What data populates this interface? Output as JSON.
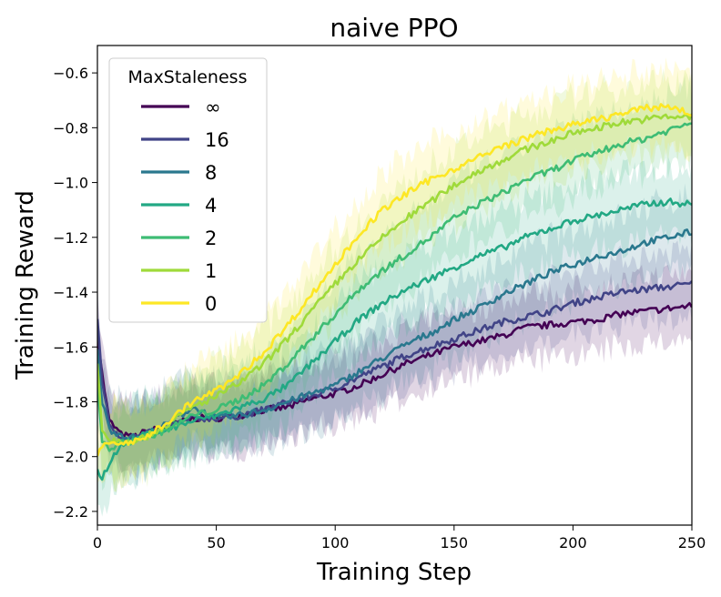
{
  "chart_data": {
    "type": "line",
    "title": "naive PPO",
    "xlabel": "Training Step",
    "ylabel": "Training Reward",
    "xlim": [
      0,
      250
    ],
    "ylim": [
      -2.25,
      -0.5
    ],
    "xticks": [
      0,
      50,
      100,
      150,
      200,
      250
    ],
    "yticks": [
      -2.2,
      -2.0,
      -1.8,
      -1.6,
      -1.4,
      -1.2,
      -1.0,
      -0.8,
      -0.6
    ],
    "ytick_labels": [
      "−2.2",
      "−2.0",
      "−1.8",
      "−1.6",
      "−1.4",
      "−1.2",
      "−1.0",
      "−0.8",
      "−0.6"
    ],
    "legend": {
      "title": "MaxStaleness",
      "position": "top-left"
    },
    "series": [
      {
        "name": "∞",
        "color": "#440154",
        "x": [
          0,
          2,
          5,
          10,
          15,
          20,
          30,
          40,
          50,
          60,
          70,
          80,
          90,
          100,
          110,
          120,
          130,
          140,
          150,
          160,
          170,
          180,
          190,
          200,
          210,
          220,
          230,
          240,
          250
        ],
        "y": [
          -1.55,
          -1.7,
          -1.87,
          -1.92,
          -1.93,
          -1.91,
          -1.89,
          -1.86,
          -1.86,
          -1.85,
          -1.83,
          -1.82,
          -1.79,
          -1.77,
          -1.74,
          -1.7,
          -1.66,
          -1.63,
          -1.6,
          -1.58,
          -1.56,
          -1.53,
          -1.52,
          -1.51,
          -1.5,
          -1.48,
          -1.47,
          -1.46,
          -1.45
        ],
        "band": 0.12
      },
      {
        "name": "16",
        "color": "#414487",
        "x": [
          0,
          2,
          5,
          10,
          15,
          20,
          30,
          40,
          50,
          60,
          70,
          80,
          90,
          100,
          110,
          120,
          130,
          140,
          150,
          160,
          170,
          180,
          190,
          200,
          210,
          220,
          230,
          240,
          250
        ],
        "y": [
          -1.5,
          -1.72,
          -1.88,
          -1.93,
          -1.93,
          -1.92,
          -1.89,
          -1.86,
          -1.86,
          -1.85,
          -1.83,
          -1.8,
          -1.78,
          -1.75,
          -1.71,
          -1.67,
          -1.63,
          -1.6,
          -1.57,
          -1.54,
          -1.51,
          -1.49,
          -1.47,
          -1.44,
          -1.42,
          -1.4,
          -1.39,
          -1.38,
          -1.37
        ],
        "band": 0.12
      },
      {
        "name": "8",
        "color": "#2a788e",
        "x": [
          0,
          2,
          5,
          10,
          15,
          20,
          30,
          40,
          50,
          60,
          70,
          80,
          90,
          100,
          110,
          120,
          130,
          140,
          150,
          160,
          170,
          180,
          190,
          200,
          210,
          220,
          230,
          240,
          250
        ],
        "y": [
          -1.6,
          -1.8,
          -1.9,
          -1.92,
          -1.93,
          -1.92,
          -1.88,
          -1.82,
          -1.86,
          -1.85,
          -1.83,
          -1.8,
          -1.77,
          -1.74,
          -1.69,
          -1.64,
          -1.59,
          -1.55,
          -1.5,
          -1.46,
          -1.41,
          -1.37,
          -1.33,
          -1.3,
          -1.27,
          -1.25,
          -1.22,
          -1.2,
          -1.18
        ],
        "band": 0.13
      },
      {
        "name": "4",
        "color": "#22a884",
        "x": [
          0,
          2,
          5,
          10,
          15,
          20,
          30,
          40,
          50,
          60,
          70,
          80,
          90,
          100,
          110,
          120,
          130,
          140,
          150,
          160,
          170,
          180,
          190,
          200,
          210,
          220,
          230,
          240,
          250
        ],
        "y": [
          -2.05,
          -2.08,
          -2.02,
          -1.96,
          -1.94,
          -1.92,
          -1.9,
          -1.87,
          -1.85,
          -1.82,
          -1.79,
          -1.74,
          -1.66,
          -1.58,
          -1.5,
          -1.44,
          -1.39,
          -1.35,
          -1.31,
          -1.27,
          -1.24,
          -1.2,
          -1.17,
          -1.14,
          -1.12,
          -1.1,
          -1.08,
          -1.07,
          -1.08
        ],
        "band": 0.13
      },
      {
        "name": "2",
        "color": "#3ebc74",
        "x": [
          0,
          2,
          5,
          10,
          15,
          20,
          30,
          40,
          50,
          60,
          70,
          80,
          90,
          100,
          110,
          120,
          130,
          140,
          150,
          160,
          170,
          180,
          190,
          200,
          210,
          220,
          230,
          240,
          250
        ],
        "y": [
          -1.72,
          -1.95,
          -1.97,
          -1.95,
          -1.94,
          -1.93,
          -1.9,
          -1.85,
          -1.83,
          -1.79,
          -1.74,
          -1.66,
          -1.57,
          -1.48,
          -1.39,
          -1.32,
          -1.26,
          -1.2,
          -1.13,
          -1.08,
          -1.04,
          -0.99,
          -0.96,
          -0.92,
          -0.89,
          -0.86,
          -0.84,
          -0.81,
          -0.78
        ],
        "band": 0.13
      },
      {
        "name": "1",
        "color": "#9fda3a",
        "x": [
          0,
          2,
          5,
          10,
          15,
          20,
          30,
          40,
          50,
          60,
          70,
          80,
          90,
          100,
          110,
          120,
          130,
          140,
          150,
          160,
          170,
          180,
          190,
          200,
          210,
          220,
          230,
          240,
          250
        ],
        "y": [
          -1.65,
          -1.9,
          -1.94,
          -1.94,
          -1.94,
          -1.93,
          -1.88,
          -1.82,
          -1.78,
          -1.73,
          -1.66,
          -1.57,
          -1.47,
          -1.37,
          -1.28,
          -1.2,
          -1.13,
          -1.07,
          -1.01,
          -0.96,
          -0.92,
          -0.88,
          -0.85,
          -0.82,
          -0.8,
          -0.78,
          -0.77,
          -0.76,
          -0.76
        ],
        "band": 0.13
      },
      {
        "name": "0",
        "color": "#fde725",
        "x": [
          0,
          2,
          5,
          10,
          15,
          20,
          30,
          40,
          50,
          60,
          70,
          80,
          90,
          100,
          110,
          120,
          130,
          140,
          150,
          160,
          170,
          180,
          190,
          200,
          210,
          220,
          230,
          240,
          250
        ],
        "y": [
          -2.0,
          -1.96,
          -1.95,
          -1.95,
          -1.95,
          -1.93,
          -1.87,
          -1.8,
          -1.76,
          -1.7,
          -1.62,
          -1.52,
          -1.41,
          -1.3,
          -1.19,
          -1.1,
          -1.04,
          -0.99,
          -0.95,
          -0.91,
          -0.87,
          -0.84,
          -0.81,
          -0.79,
          -0.77,
          -0.75,
          -0.73,
          -0.72,
          -0.75
        ],
        "band": 0.13
      }
    ]
  }
}
